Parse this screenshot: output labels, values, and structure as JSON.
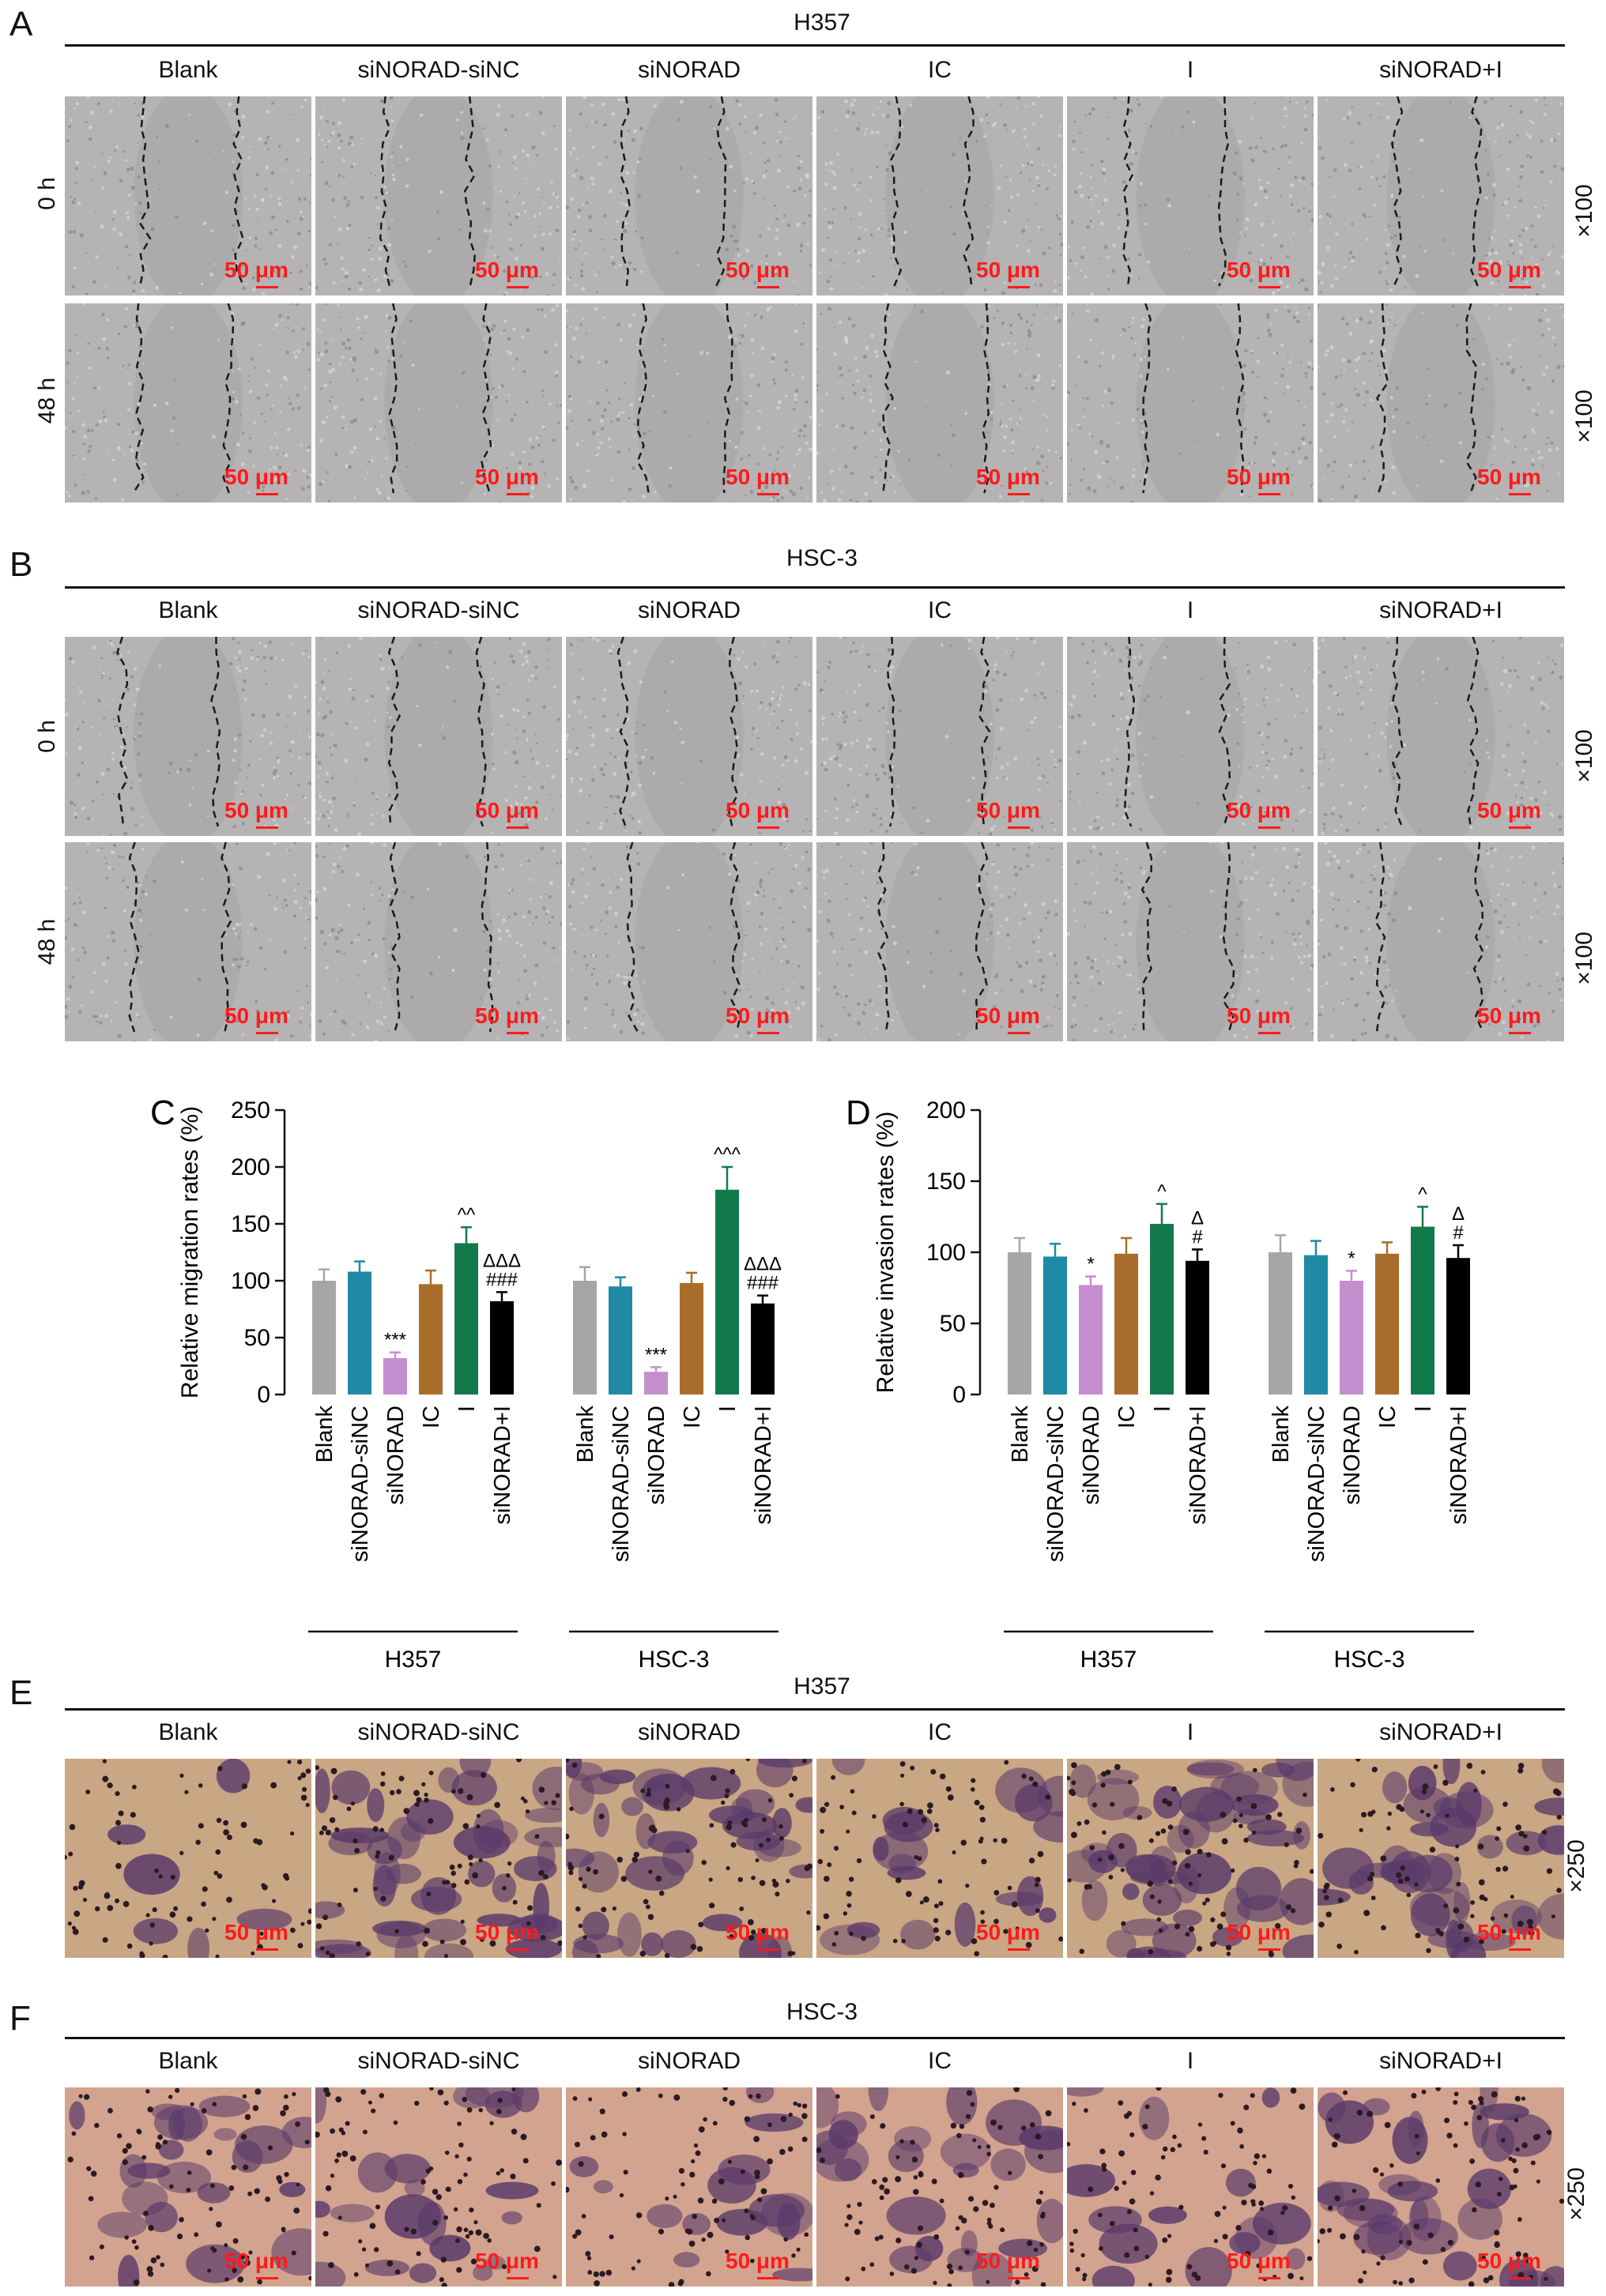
{
  "panels": {
    "A": {
      "letter": "A",
      "cell_line": "H357",
      "times": [
        "0 h",
        "48 h"
      ],
      "magnification": "×100"
    },
    "B": {
      "letter": "B",
      "cell_line": "HSC-3",
      "times": [
        "0 h",
        "48 h"
      ],
      "magnification": "×100"
    },
    "E": {
      "letter": "E",
      "cell_line": "H357",
      "magnification": "×250"
    },
    "F": {
      "letter": "F",
      "cell_line": "HSC-3",
      "magnification": "×250"
    }
  },
  "groups": [
    "Blank",
    "siNORAD-siNC",
    "siNORAD",
    "IC",
    "I",
    "siNORAD+I"
  ],
  "scale_bar": "50 μm",
  "colors": {
    "Blank": "#a6a6a8",
    "siNORAD-siNC": "#1f8aa6",
    "siNORAD": "#c58fcf",
    "IC": "#a86d2a",
    "I": "#127a4a",
    "siNORAD+I": "#000000",
    "wound_bg": "#b5b3b4",
    "invasion_bg_H357": "#c9a684",
    "invasion_bg_HSC3": "#d2a38e",
    "stain": "#5a3a6a",
    "scale_red": "#ff1a1a"
  },
  "chart_data": [
    {
      "panel": "C",
      "type": "bar",
      "ylabel": "Relative migration rates (%)",
      "ylim": [
        0,
        250
      ],
      "yticks": [
        0,
        50,
        100,
        150,
        200,
        250
      ],
      "groups": [
        {
          "name": "H357",
          "categories": [
            "Blank",
            "siNORAD-siNC",
            "siNORAD",
            "IC",
            "I",
            "siNORAD+I"
          ],
          "values": [
            100,
            108,
            32,
            97,
            133,
            82
          ],
          "errors": [
            10,
            9,
            5,
            12,
            14,
            8
          ],
          "annotations": [
            "",
            "",
            "***",
            "",
            "^^",
            "ΔΔΔ|###"
          ]
        },
        {
          "name": "HSC-3",
          "categories": [
            "Blank",
            "siNORAD-siNC",
            "siNORAD",
            "IC",
            "I",
            "siNORAD+I"
          ],
          "values": [
            100,
            95,
            20,
            98,
            180,
            80
          ],
          "errors": [
            12,
            8,
            4,
            9,
            20,
            7
          ],
          "annotations": [
            "",
            "",
            "***",
            "",
            "^^^",
            "ΔΔΔ|###"
          ]
        }
      ]
    },
    {
      "panel": "D",
      "type": "bar",
      "ylabel": "Relative invasion rates (%)",
      "ylim": [
        0,
        200
      ],
      "yticks": [
        0,
        50,
        100,
        150,
        200
      ],
      "groups": [
        {
          "name": "H357",
          "categories": [
            "Blank",
            "siNORAD-siNC",
            "siNORAD",
            "IC",
            "I",
            "siNORAD+I"
          ],
          "values": [
            100,
            97,
            77,
            99,
            120,
            94
          ],
          "errors": [
            10,
            9,
            6,
            11,
            14,
            8
          ],
          "annotations": [
            "",
            "",
            "*",
            "",
            "^",
            "Δ|#"
          ]
        },
        {
          "name": "HSC-3",
          "categories": [
            "Blank",
            "siNORAD-siNC",
            "siNORAD",
            "IC",
            "I",
            "siNORAD+I"
          ],
          "values": [
            100,
            98,
            80,
            99,
            118,
            96
          ],
          "errors": [
            12,
            10,
            7,
            8,
            14,
            9
          ],
          "annotations": [
            "",
            "",
            "*",
            "",
            "^",
            "Δ|#"
          ]
        }
      ]
    }
  ]
}
